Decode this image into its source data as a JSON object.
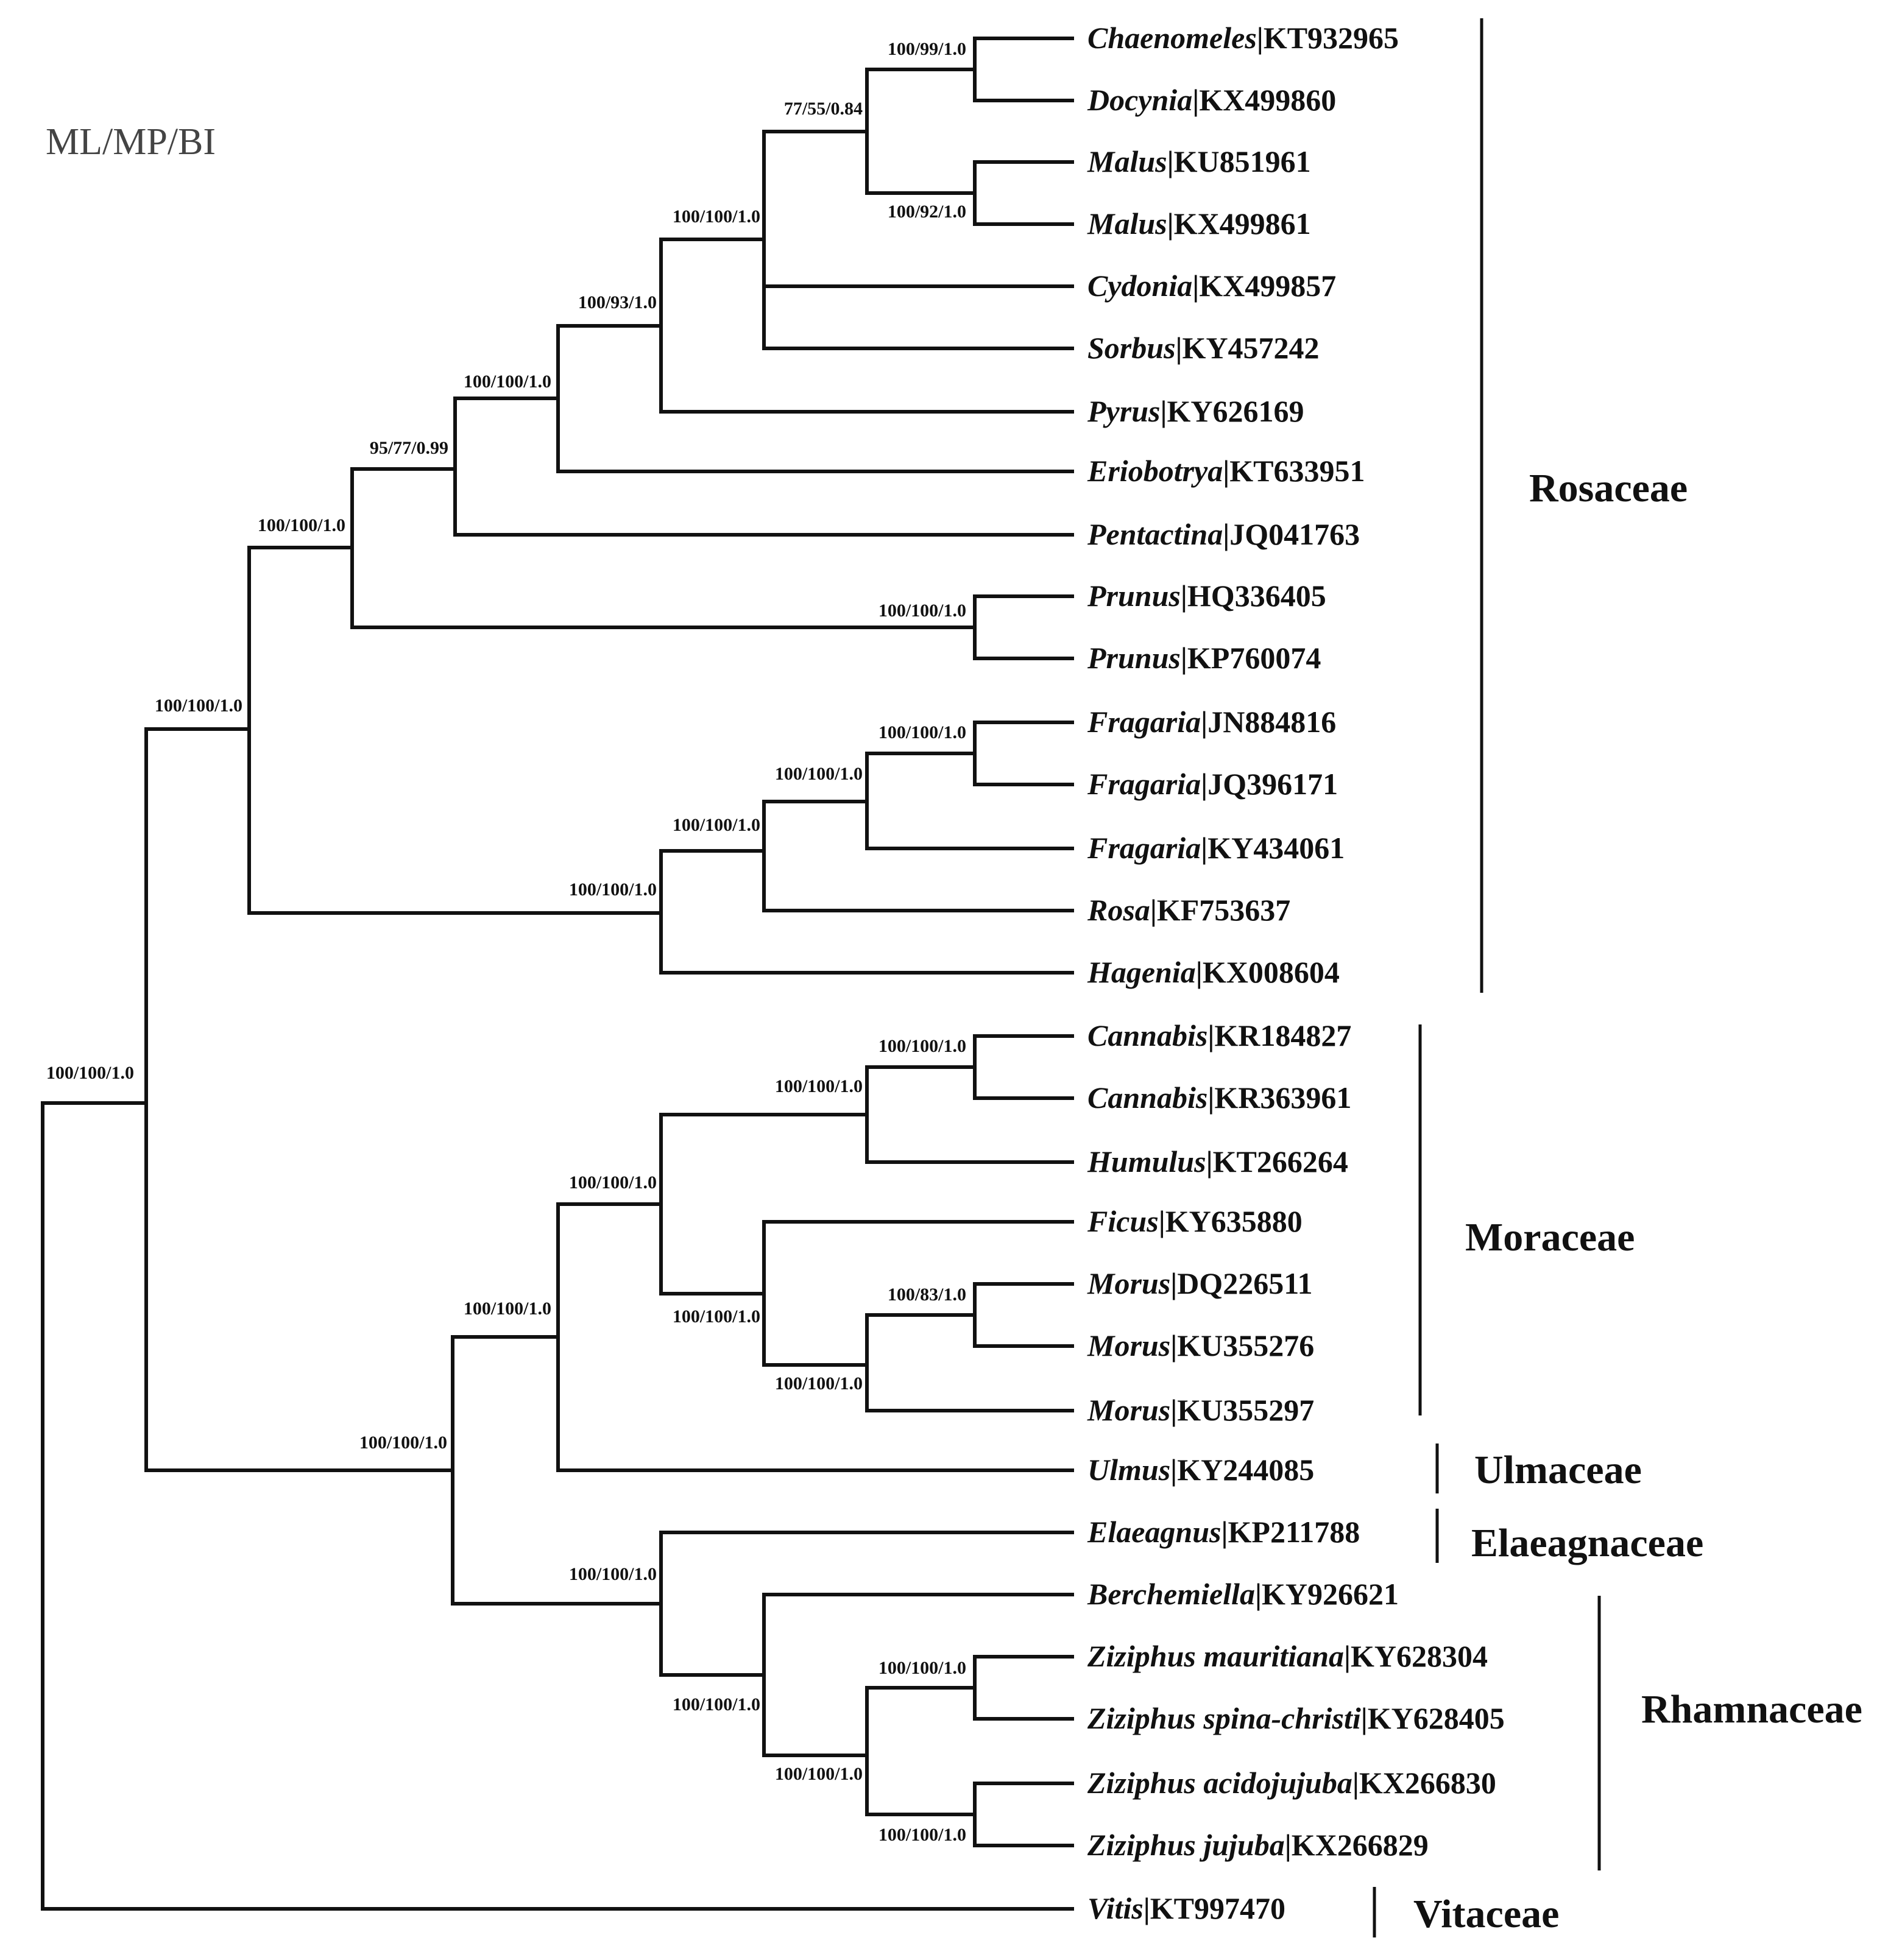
{
  "legend": "ML/MP/BI",
  "taxa": [
    {
      "genus": "Chaenomeles",
      "accession": "KT932965"
    },
    {
      "genus": "Docynia",
      "accession": "KX499860"
    },
    {
      "genus": "Malus",
      "accession": "KU851961"
    },
    {
      "genus": "Malus",
      "accession": "KX499861"
    },
    {
      "genus": "Cydonia",
      "accession": "KX499857"
    },
    {
      "genus": "Sorbus",
      "accession": "KY457242"
    },
    {
      "genus": "Pyrus",
      "accession": "KY626169"
    },
    {
      "genus": "Eriobotrya",
      "accession": "KT633951"
    },
    {
      "genus": "Pentactina",
      "accession": "JQ041763"
    },
    {
      "genus": "Prunus",
      "accession": "HQ336405"
    },
    {
      "genus": "Prunus",
      "accession": "KP760074"
    },
    {
      "genus": "Fragaria",
      "accession": "JN884816"
    },
    {
      "genus": "Fragaria",
      "accession": "JQ396171"
    },
    {
      "genus": "Fragaria",
      "accession": "KY434061"
    },
    {
      "genus": "Rosa",
      "accession": "KF753637"
    },
    {
      "genus": "Hagenia",
      "accession": "KX008604"
    },
    {
      "genus": "Cannabis",
      "accession": "KR184827"
    },
    {
      "genus": "Cannabis",
      "accession": "KR363961"
    },
    {
      "genus": "Humulus",
      "accession": "KT266264"
    },
    {
      "genus": "Ficus",
      "accession": "KY635880"
    },
    {
      "genus": "Morus",
      "accession": "DQ226511"
    },
    {
      "genus": "Morus",
      "accession": "KU355276"
    },
    {
      "genus": "Morus",
      "accession": "KU355297"
    },
    {
      "genus": "Ulmus",
      "accession": "KY244085"
    },
    {
      "genus": "Elaeagnus",
      "accession": "KP211788"
    },
    {
      "genus": "Berchemiella",
      "accession": "KY926621"
    },
    {
      "genus": "Ziziphus mauritiana",
      "accession": "KY628304"
    },
    {
      "genus": "Ziziphus spina-christi",
      "accession": "KY628405"
    },
    {
      "genus": "Ziziphus acidojujuba",
      "accession": "KX266830"
    },
    {
      "genus": "Ziziphus jujuba",
      "accession": "KX266829"
    },
    {
      "genus": "Vitis",
      "accession": "KT997470"
    }
  ],
  "support_values": [
    "100/99/1.0",
    "100/92/1.0",
    "77/55/0.84",
    "100/100/1.0",
    "100/93/1.0",
    "100/100/1.0",
    "95/77/0.99",
    "100/100/1.0",
    "100/100/1.0",
    "100/100/1.0",
    "100/100/1.0",
    "100/100/1.0",
    "100/100/1.0",
    "100/100/1.0",
    "100/100/1.0",
    "100/83/1.0",
    "100/100/1.0",
    "100/100/1.0",
    "100/100/1.0",
    "100/100/1.0",
    "100/100/1.0",
    "100/100/1.0",
    "100/100/1.0",
    "100/100/1.0",
    "100/100/1.0",
    "100/100/1.0",
    "100/100/1.0",
    "100/100/1.0"
  ],
  "families": [
    {
      "name": "Rosaceae"
    },
    {
      "name": "Moraceae"
    },
    {
      "name": "Ulmaceae"
    },
    {
      "name": "Elaeagnaceae"
    },
    {
      "name": "Rhamnaceae"
    },
    {
      "name": "Vitaceae"
    }
  ]
}
